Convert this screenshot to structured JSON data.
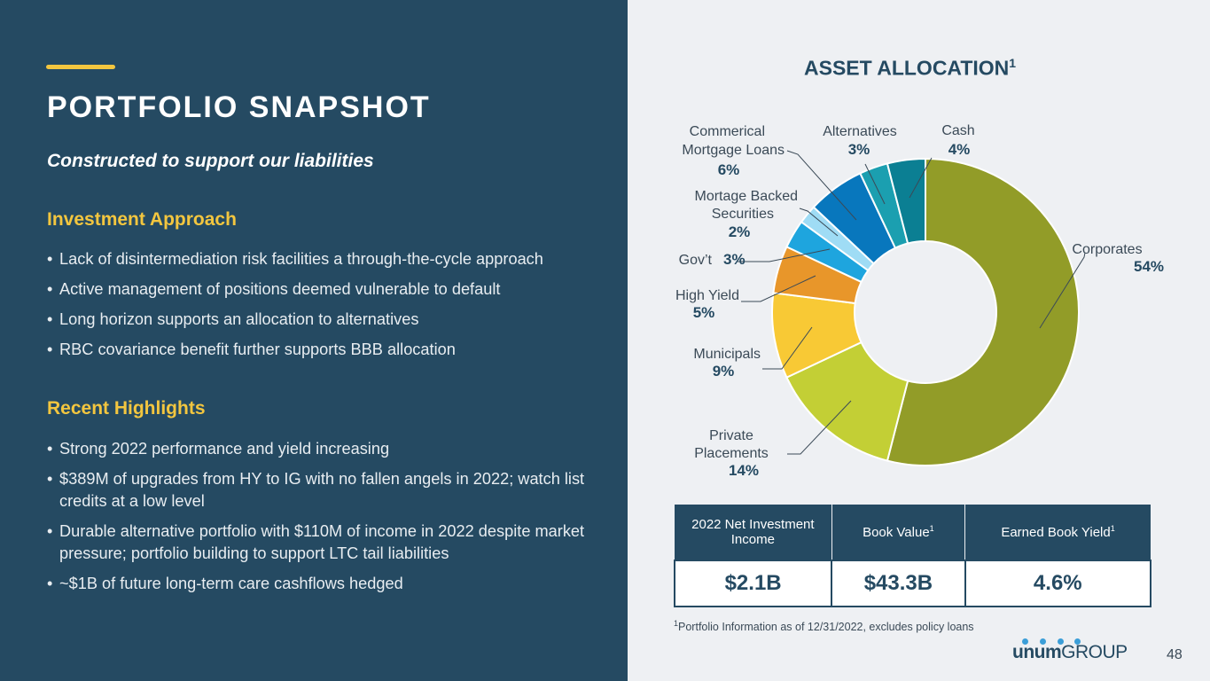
{
  "left": {
    "title": "PORTFOLIO SNAPSHOT",
    "subtitle": "Constructed to support our liabilities",
    "investment_heading": "Investment Approach",
    "investment_bullets": [
      "Lack of disintermediation risk facilities a through-the-cycle approach",
      "Active management of positions deemed vulnerable to default",
      "Long horizon supports an allocation to alternatives",
      "RBC covariance benefit further supports BBB allocation"
    ],
    "highlights_heading": "Recent Highlights",
    "highlights_bullets": [
      "Strong 2022 performance and yield increasing",
      "$389M of upgrades from HY to IG with no fallen angels in 2022; watch list credits at a low level",
      "Durable alternative portfolio with $110M of income in 2022 despite market pressure; portfolio building to support LTC tail liabilities",
      "~$1B of future long-term care cashflows hedged"
    ]
  },
  "chart_data": {
    "type": "pie",
    "variant": "donut",
    "title": "ASSET ALLOCATION",
    "title_sup": "1",
    "slices": [
      {
        "label": "Corporates",
        "value": 54,
        "display": "54%",
        "color": "#929c28"
      },
      {
        "label": "Private Placements",
        "value": 14,
        "display": "14%",
        "color": "#c3cf35"
      },
      {
        "label": "Municipals",
        "value": 9,
        "display": "9%",
        "color": "#f8c935"
      },
      {
        "label": "High Yield",
        "value": 5,
        "display": "5%",
        "color": "#e8962a"
      },
      {
        "label": "Gov’t",
        "value": 3,
        "display": "3%",
        "color": "#1ea5de"
      },
      {
        "label": "Mortage Backed Securities",
        "value": 2,
        "display": "2%",
        "color": "#9fdcf5"
      },
      {
        "label": "Commerical Mortgage Loans",
        "value": 6,
        "display": "6%",
        "color": "#0877bd"
      },
      {
        "label": "Alternatives",
        "value": 3,
        "display": "3%",
        "color": "#1b9fb0"
      },
      {
        "label": "Cash",
        "value": 4,
        "display": "4%",
        "color": "#0b7f93"
      }
    ]
  },
  "table": {
    "headers": [
      {
        "text": "2022 Net Investment Income",
        "sup": ""
      },
      {
        "text": "Book Value",
        "sup": "1"
      },
      {
        "text": "Earned Book Yield",
        "sup": "1"
      }
    ],
    "values": [
      "$2.1B",
      "$43.3B",
      "4.6%"
    ]
  },
  "footnote": {
    "sup": "1",
    "text": "Portfolio Information as of 12/31/2022, excludes policy loans"
  },
  "logo": {
    "bold": "unum",
    "rest": "GROUP"
  },
  "page_number": "48"
}
